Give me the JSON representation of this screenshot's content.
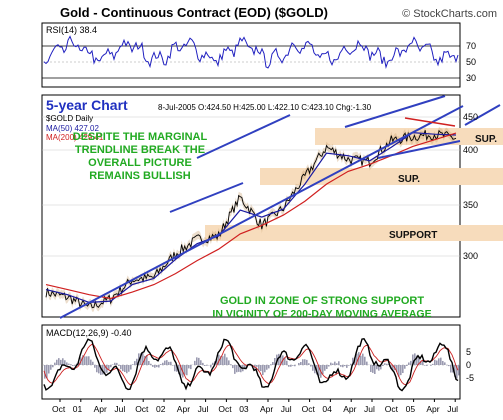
{
  "header": {
    "title": "Gold - Continuous Contract (EOD) ($GOLD)",
    "copyright": "© StockCharts.com"
  },
  "rsi_panel": {
    "label": "RSI(14) 38.4",
    "levels": [
      "70",
      "50",
      "30"
    ]
  },
  "price_panel": {
    "chart_title": "5-year Chart",
    "symbol": "$GOLD Daily",
    "ohlc": "8-Jul-2005  O:424.50  H:425.00  L:422.10  C:423.10  Chg:-1.30",
    "ma50_label": "MA(50) 427.02",
    "ma200_label": "MA(200) 429.41",
    "annotation_top": [
      "DESPITE THE MARGINAL",
      "TRENDLINE BREAK THE",
      "OVERALL PICTURE",
      "REMAINS BULLISH"
    ],
    "annotation_bottom": [
      "GOLD IN ZONE OF STRONG SUPPORT",
      "IN VICINITY OF 200-DAY MOVING AVERAGE"
    ],
    "zone_labels": [
      "SUP.",
      "SUP.",
      "SUPPORT"
    ],
    "y_ticks": [
      "450",
      "400",
      "350",
      "300"
    ]
  },
  "macd_panel": {
    "label": "MACD(12,26,9) -0.40",
    "y_ticks": [
      "5",
      "0",
      "-5"
    ]
  },
  "x_axis": {
    "labels": [
      "Oct",
      "01",
      "Apr",
      "Jul",
      "Oct",
      "02",
      "Apr",
      "Jul",
      "Oct",
      "03",
      "Apr",
      "Jul",
      "Oct",
      "04",
      "Apr",
      "Jul",
      "Oct",
      "05",
      "Apr",
      "Jul"
    ]
  },
  "colors": {
    "frame": "#000000",
    "rsi_line": "#2020c0",
    "price_bars": "#000000",
    "ma50": "#1a1aa0",
    "ma200": "#d02020",
    "trendline": "#3040c0",
    "support_zone": "#f7dcbc",
    "annotation_text": "#22aa22",
    "zone_text": "#111111",
    "title_text": "#2030c0",
    "resistance_line": "#d02020",
    "macd_line": "#000000",
    "macd_signal": "#cc2222"
  },
  "chart_data": {
    "type": "line",
    "title": "Gold - Continuous Contract (EOD) ($GOLD)",
    "x": [
      "Oct 2000",
      "Jan 2001",
      "Apr 2001",
      "Jul 2001",
      "Oct 2001",
      "Jan 2002",
      "Apr 2002",
      "Jul 2002",
      "Oct 2002",
      "Jan 2003",
      "Apr 2003",
      "Jul 2003",
      "Oct 2003",
      "Jan 2004",
      "Apr 2004",
      "Jul 2004",
      "Oct 2004",
      "Jan 2005",
      "Apr 2005",
      "Jul 2005"
    ],
    "series": [
      {
        "name": "$GOLD",
        "values": [
          270,
          266,
          258,
          265,
          280,
          282,
          302,
          315,
          318,
          356,
          328,
          345,
          378,
          412,
          398,
          395,
          420,
          425,
          428,
          423
        ]
      },
      {
        "name": "MA(50)",
        "values": [
          272,
          268,
          262,
          263,
          276,
          281,
          297,
          311,
          318,
          343,
          336,
          344,
          370,
          405,
          402,
          396,
          412,
          430,
          428,
          427.02
        ]
      },
      {
        "name": "MA(200)",
        "values": [
          276,
          272,
          268,
          265,
          270,
          276,
          285,
          296,
          306,
          320,
          328,
          338,
          352,
          370,
          384,
          392,
          402,
          413,
          421,
          429.41
        ]
      }
    ],
    "ylim": [
      255,
      465
    ],
    "ylabel": "",
    "xlabel": "",
    "scale": "log",
    "grid": true,
    "zones": [
      {
        "label": "SUP.",
        "range": [
          418,
          440
        ]
      },
      {
        "label": "SUP.",
        "range": [
          375,
          388
        ]
      },
      {
        "label": "SUPPORT",
        "range": [
          322,
          333
        ]
      }
    ],
    "rsi": {
      "latest": 38.4,
      "levels": [
        70,
        50,
        30
      ]
    },
    "macd": {
      "latest": -0.4,
      "ylim": [
        -9,
        9
      ]
    }
  }
}
